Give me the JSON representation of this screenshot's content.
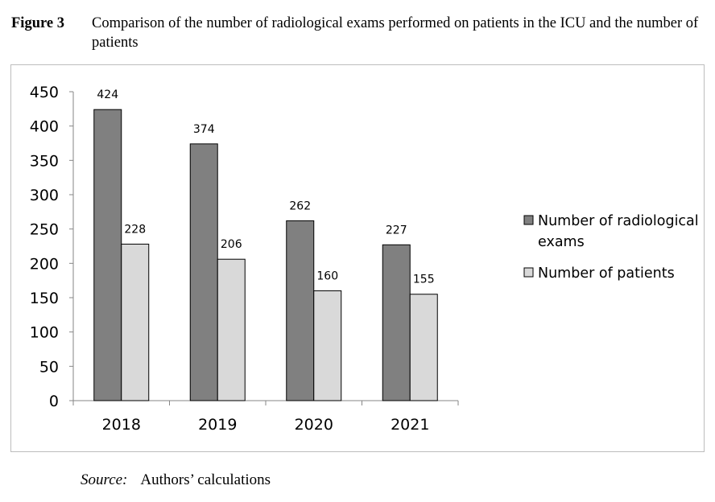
{
  "figure": {
    "label": "Figure 3",
    "title": "Comparison of the number of radiological exams performed on patients in the ICU and the number of patients"
  },
  "source": {
    "label": "Source:",
    "text": "Authors’ calculations"
  },
  "chart_data": {
    "type": "bar",
    "title": "",
    "xlabel": "",
    "ylabel": "",
    "categories": [
      "2018",
      "2019",
      "2020",
      "2021"
    ],
    "series": [
      {
        "name": "Number of radiological exams",
        "values": [
          424,
          374,
          262,
          227
        ],
        "color": "#808080"
      },
      {
        "name": "Number of patients",
        "values": [
          228,
          206,
          160,
          155
        ],
        "color": "#d9d9d9"
      }
    ],
    "ylim": [
      0,
      450
    ],
    "yticks": [
      0,
      50,
      100,
      150,
      200,
      250,
      300,
      350,
      400,
      450
    ],
    "grid": false,
    "data_labels": true,
    "legend_position": "right"
  }
}
